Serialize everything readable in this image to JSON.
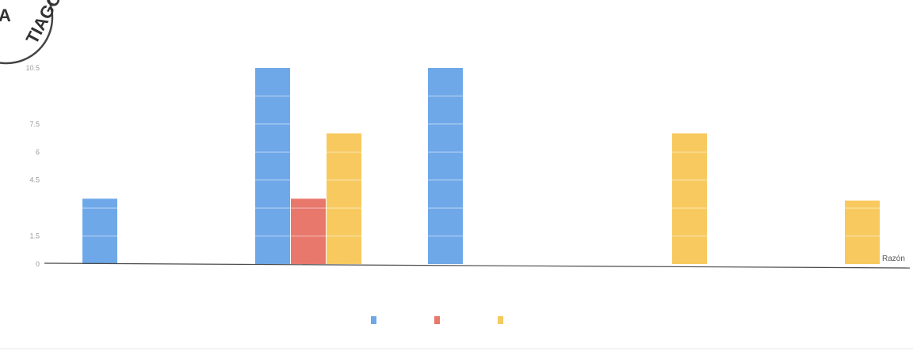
{
  "stamp": {
    "text_a": "A",
    "text_arc": "TIAGO"
  },
  "colors": {
    "background": "#ffffff",
    "baseline": "#4a4a4a",
    "bar_divider": "#ffffff",
    "blue": "#6fa8e8",
    "red": "#e8776c",
    "yellow": "#f7c95f"
  },
  "chart_data": {
    "type": "bar",
    "title": "",
    "xlabel": "Razón",
    "ylabel": "",
    "categories": [
      "",
      "",
      "",
      "",
      ""
    ],
    "y_ticks": [
      "0",
      "1.5",
      "",
      "4.5",
      "6",
      "7.5",
      "",
      "10.5"
    ],
    "ylim": [
      0,
      10.5
    ],
    "grid": false,
    "legend_position": "bottom",
    "series": [
      {
        "name": "",
        "color": "#6fa8e8",
        "values": [
          3.5,
          10.5,
          10.5,
          0,
          0
        ]
      },
      {
        "name": "",
        "color": "#e8776c",
        "values": [
          0,
          3.5,
          0,
          0,
          0
        ]
      },
      {
        "name": "",
        "color": "#f7c95f",
        "values": [
          0,
          7,
          0,
          7,
          3.4
        ]
      }
    ]
  }
}
